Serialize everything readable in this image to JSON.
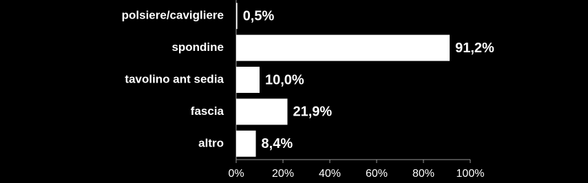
{
  "chart_data": {
    "type": "hbar",
    "categories": [
      "polsiere/cavigliere",
      "spondine",
      "tavolino ant sedia",
      "fascia",
      "altro"
    ],
    "values": [
      0.5,
      91.2,
      10.0,
      21.9,
      8.4
    ],
    "value_labels": [
      "0,5%",
      "91,2%",
      "10,0%",
      "21,9%",
      "8,4%"
    ],
    "color": "#ffffff",
    "xlim": [
      0,
      100
    ],
    "xticks": [
      {
        "value": 0,
        "label": "0%"
      },
      {
        "value": 20,
        "label": "20%"
      },
      {
        "value": 40,
        "label": "40%"
      },
      {
        "value": 60,
        "label": "60%"
      },
      {
        "value": 80,
        "label": "80%"
      },
      {
        "value": 100,
        "label": "100%"
      }
    ]
  }
}
